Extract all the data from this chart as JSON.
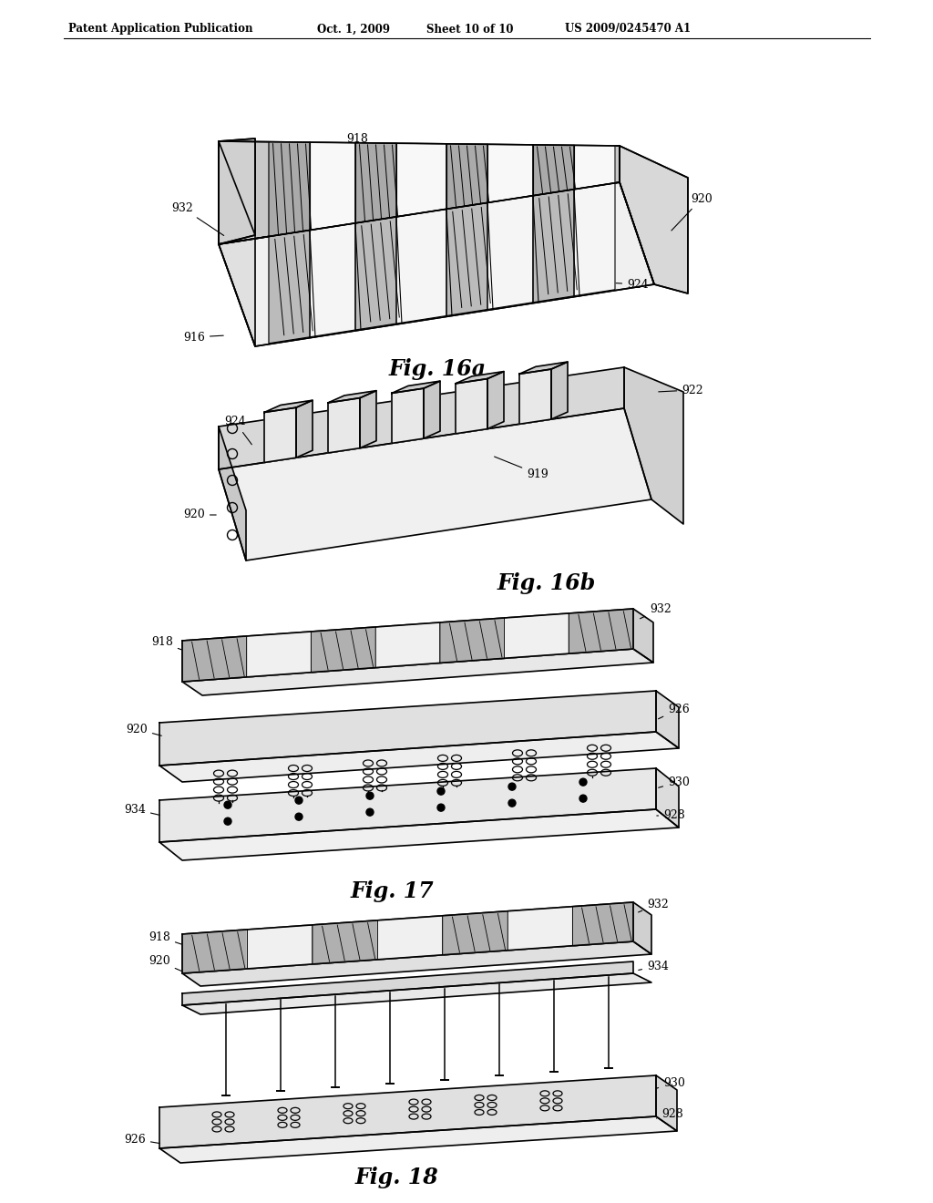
{
  "background_color": "#ffffff",
  "header_text": "Patent Application Publication",
  "header_date": "Oct. 1, 2009",
  "header_sheet": "Sheet 10 of 10",
  "header_patent": "US 2009/0245470 A1",
  "fig16a_label": "Fig. 16a",
  "fig16b_label": "Fig. 16b",
  "fig17_label": "Fig. 17",
  "fig18_label": "Fig. 18",
  "line_color": "#000000",
  "lw": 1.2
}
